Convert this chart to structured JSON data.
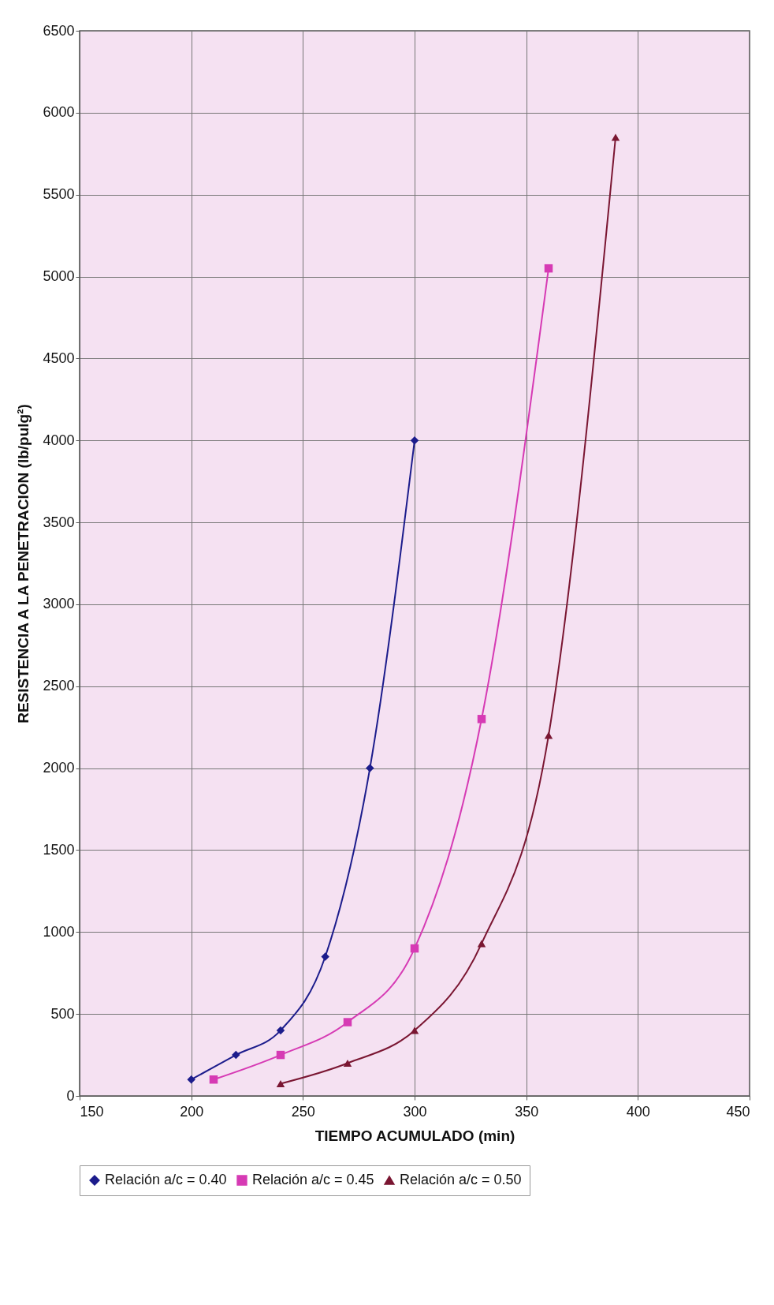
{
  "chart_data": {
    "type": "line",
    "xlabel": "TIEMPO ACUMULADO (min)",
    "ylabel": "RESISTENCIA A LA PENETRACION (lb/pulg²)",
    "xlim": [
      150,
      450
    ],
    "xticks": [
      150,
      200,
      250,
      300,
      350,
      400,
      450
    ],
    "ylim": [
      0,
      6500
    ],
    "yticks": [
      0,
      500,
      1000,
      1500,
      2000,
      2500,
      3000,
      3500,
      4000,
      4500,
      5000,
      5500,
      6000,
      6500
    ],
    "grid": true,
    "legend": "bottom",
    "line_style": "solid",
    "series": [
      {
        "name": "Relación a/c = 0.40",
        "color": "#1c1c8c",
        "marker": "diamond",
        "x": [
          200,
          220,
          240,
          260,
          280,
          300
        ],
        "values": [
          100,
          250,
          400,
          850,
          2000,
          4000
        ]
      },
      {
        "name": "Relación a/c = 0.45",
        "color": "#d63ab4",
        "marker": "square",
        "x": [
          210,
          240,
          270,
          300,
          330,
          360
        ],
        "values": [
          100,
          250,
          450,
          900,
          2300,
          5050
        ]
      },
      {
        "name": "Relación a/c = 0.50",
        "color": "#7a1632",
        "marker": "triangle",
        "x": [
          240,
          270,
          300,
          330,
          360,
          390
        ],
        "values": [
          75,
          200,
          400,
          930,
          2200,
          5850
        ]
      }
    ]
  }
}
